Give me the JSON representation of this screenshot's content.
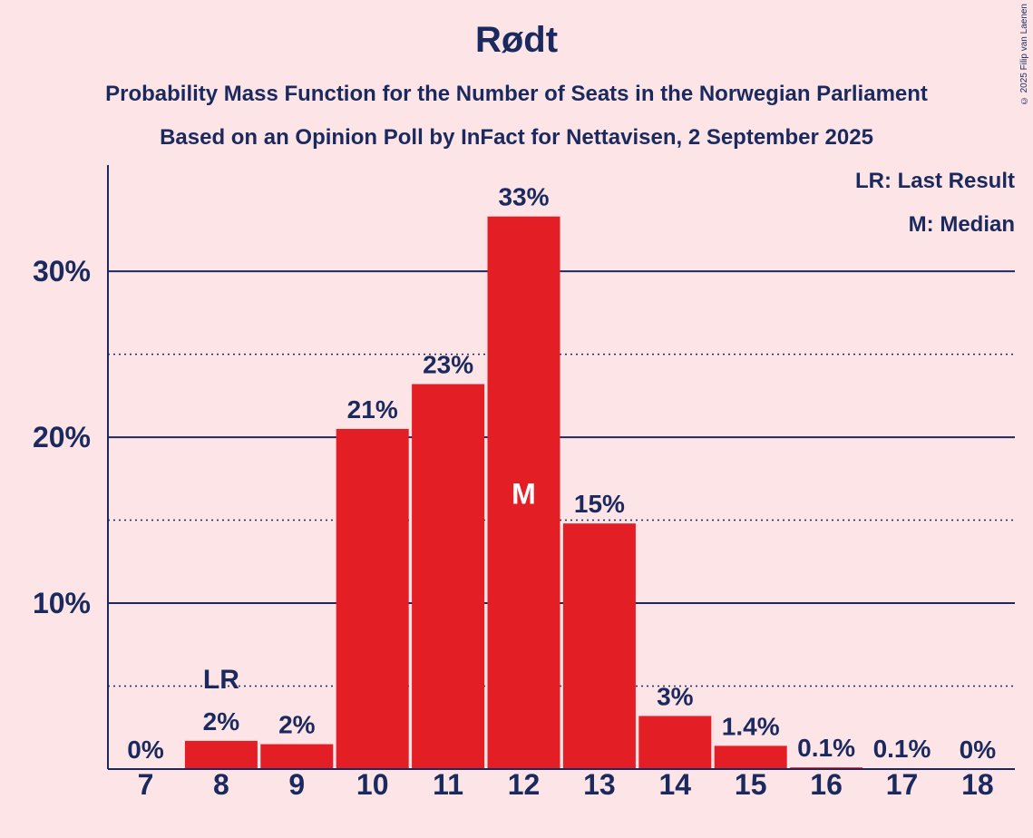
{
  "title": "Rødt",
  "subtitle1": "Probability Mass Function for the Number of Seats in the Norwegian Parliament",
  "subtitle2": "Based on an Opinion Poll by InFact for Nettavisen, 2 September 2025",
  "copyright": "© 2025 Filip van Laenen",
  "legend": {
    "last_result": "LR: Last Result",
    "median": "M: Median"
  },
  "colors": {
    "bar": "#e31e24",
    "text": "#1b2a5e",
    "background": "#fde4e6"
  },
  "chart_data": {
    "type": "bar",
    "categories": [
      "7",
      "8",
      "9",
      "10",
      "11",
      "12",
      "13",
      "14",
      "15",
      "16",
      "17",
      "18"
    ],
    "values": [
      0,
      1.7,
      1.5,
      20.5,
      23.2,
      33.3,
      14.8,
      3.2,
      1.4,
      0.1,
      0.05,
      0
    ],
    "data_labels": [
      "0%",
      "2%",
      "2%",
      "21%",
      "23%",
      "33%",
      "15%",
      "3%",
      "1.4%",
      "0.1%",
      "0.1%",
      "0%"
    ],
    "ylim": [
      0,
      36.4
    ],
    "yticks": [
      10,
      20,
      30
    ],
    "ytick_labels": [
      "10%",
      "20%",
      "30%"
    ],
    "minor_gridlines": [
      5,
      15,
      25
    ],
    "last_result_category": "8",
    "last_result_label": "LR",
    "median_category": "12",
    "median_label": "M",
    "xlabel": "",
    "ylabel": "",
    "legend_position": "top-right"
  }
}
